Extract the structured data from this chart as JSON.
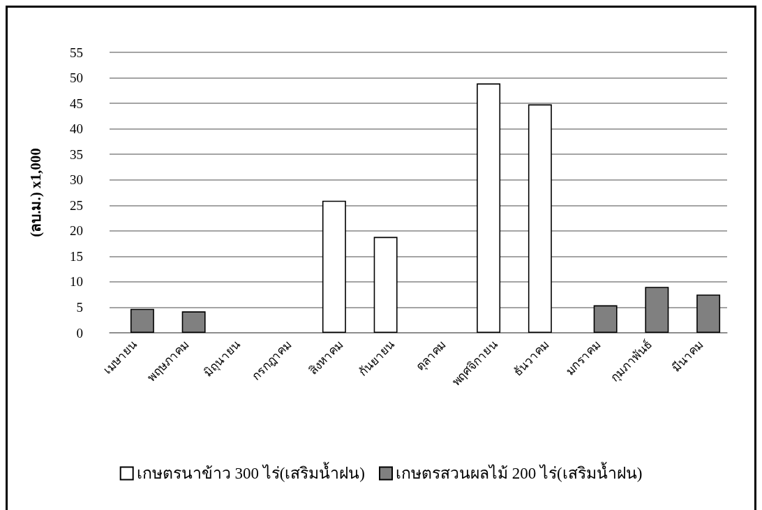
{
  "chart_data": {
    "type": "bar",
    "ylabel": "(ลบ.ม.) x1,000",
    "categories": [
      "เมษายน",
      "พฤษภาคม",
      "มิถุนายน",
      "กรกฎาคม",
      "สิงหาคม",
      "กันยายน",
      "ตุลาคม",
      "พฤศจิกายน",
      "ธันวาคม",
      "มกราคม",
      "กุมภาพันธ์",
      "มีนาคม"
    ],
    "series": [
      {
        "name": "เกษตรนาข้าว 300 ไร่(เสริมน้ำฝน)",
        "color": "#ffffff",
        "values": [
          null,
          null,
          null,
          null,
          25.9,
          18.8,
          null,
          48.9,
          44.8,
          null,
          null,
          null
        ]
      },
      {
        "name": "เกษตรสวนผลไม้ 200 ไร่(เสริมน้ำฝน)",
        "color": "#808080",
        "values": [
          4.7,
          4.2,
          null,
          null,
          null,
          null,
          null,
          null,
          null,
          5.4,
          9.0,
          7.5
        ]
      }
    ],
    "ylim": [
      0,
      55
    ],
    "yticks": [
      0,
      5,
      10,
      15,
      20,
      25,
      30,
      35,
      40,
      45,
      50,
      55
    ],
    "grid": "y",
    "legend": "bottom"
  }
}
